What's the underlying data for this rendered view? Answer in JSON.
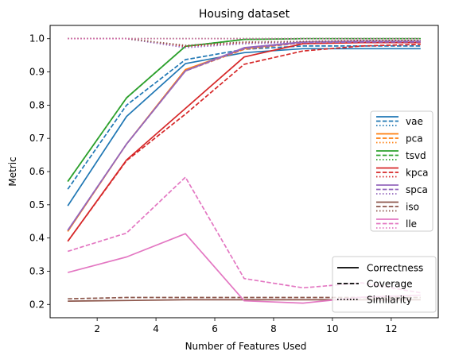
{
  "chart_data": {
    "type": "line",
    "title": "Housing dataset",
    "xlabel": "Number of Features Used",
    "ylabel": "Metric",
    "xlim": [
      0.4,
      13.6
    ],
    "ylim": [
      0.16,
      1.04
    ],
    "x_ticks": [
      2,
      4,
      6,
      8,
      10,
      12
    ],
    "y_ticks": [
      0.2,
      0.3,
      0.4,
      0.5,
      0.6,
      0.7,
      0.8,
      0.9,
      1.0
    ],
    "x_tick_labels": [
      "2",
      "4",
      "6",
      "8",
      "10",
      "12"
    ],
    "y_tick_labels": [
      "0.2",
      "0.3",
      "0.4",
      "0.5",
      "0.6",
      "0.7",
      "0.8",
      "0.9",
      "1.0"
    ],
    "grid": false,
    "x": [
      1,
      3,
      5,
      7,
      9,
      11,
      13
    ],
    "series": [
      {
        "method": "vae",
        "color": "#1f77b4",
        "correctness": [
          0.497,
          0.766,
          0.925,
          0.958,
          0.97,
          0.97,
          0.97
        ],
        "coverage": [
          0.547,
          0.8,
          0.937,
          0.968,
          0.978,
          0.978,
          0.978
        ],
        "similarity": [
          1.0,
          1.0,
          1.0,
          1.0,
          1.0,
          1.0,
          1.0
        ]
      },
      {
        "method": "pca",
        "color": "#ff7f0e",
        "correctness": [
          0.42,
          0.683,
          0.907,
          0.97,
          0.99,
          0.993,
          0.993
        ],
        "coverage": [
          0.42,
          0.683,
          0.903,
          0.968,
          0.988,
          0.99,
          0.99
        ],
        "similarity": [
          1.0,
          1.0,
          1.0,
          1.0,
          1.0,
          1.0,
          1.0
        ]
      },
      {
        "method": "tsvd",
        "color": "#2ca02c",
        "correctness": [
          0.57,
          0.822,
          0.977,
          0.998,
          1.0,
          1.0,
          1.0
        ],
        "coverage": [
          0.57,
          0.822,
          0.977,
          0.998,
          1.0,
          1.0,
          1.0
        ],
        "similarity": [
          1.0,
          1.0,
          1.0,
          1.0,
          1.0,
          1.0,
          1.0
        ]
      },
      {
        "method": "kpca",
        "color": "#d62728",
        "correctness": [
          0.39,
          0.635,
          0.79,
          0.945,
          0.985,
          0.988,
          0.988
        ],
        "coverage": [
          0.39,
          0.633,
          0.773,
          0.923,
          0.963,
          0.978,
          0.983
        ],
        "similarity": [
          1.0,
          1.0,
          0.977,
          0.988,
          0.99,
          0.995,
          0.995
        ]
      },
      {
        "method": "spca",
        "color": "#9467bd",
        "correctness": [
          0.423,
          0.683,
          0.903,
          0.973,
          0.99,
          0.993,
          0.993
        ],
        "coverage": [
          0.423,
          0.683,
          0.903,
          0.97,
          0.988,
          0.99,
          0.99
        ],
        "similarity": [
          1.0,
          1.0,
          0.973,
          0.985,
          0.99,
          0.993,
          0.993
        ]
      },
      {
        "method": "iso",
        "color": "#8c564b",
        "correctness": [
          0.21,
          0.212,
          0.214,
          0.214,
          0.214,
          0.214,
          0.214
        ],
        "coverage": [
          0.217,
          0.221,
          0.221,
          0.221,
          0.221,
          0.221,
          0.221
        ],
        "similarity": [
          1.0,
          1.0,
          0.98,
          0.99,
          0.992,
          0.995,
          0.995
        ]
      },
      {
        "method": "lle",
        "color": "#e377c2",
        "correctness": [
          0.296,
          0.343,
          0.413,
          0.211,
          0.204,
          0.222,
          0.228
        ],
        "coverage": [
          0.36,
          0.415,
          0.583,
          0.278,
          0.25,
          0.265,
          0.235
        ],
        "similarity": [
          1.0,
          1.0,
          1.0,
          1.0,
          1.0,
          1.0,
          1.0
        ]
      }
    ],
    "legend_methods": {
      "placement": "center-right",
      "entries": [
        "vae",
        "pca",
        "tsvd",
        "kpca",
        "spca",
        "iso",
        "lle"
      ]
    },
    "legend_metrics": {
      "placement": "lower-right",
      "entries": [
        "Correctness",
        "Coverage",
        "Similarity"
      ]
    }
  }
}
